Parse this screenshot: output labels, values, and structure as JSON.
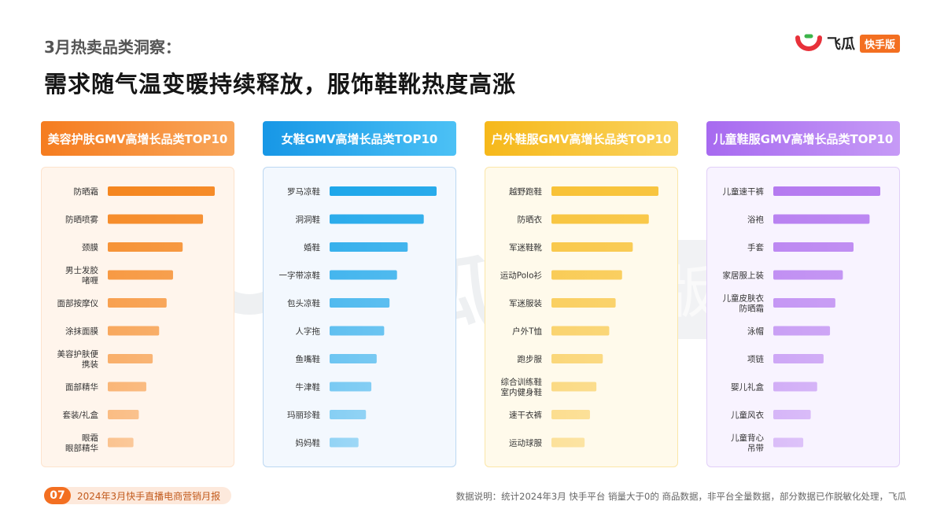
{
  "header": {
    "subtitle": "3月热卖品类洞察：",
    "headline": "需求随气温变暖持续释放，服饰鞋靴热度高涨"
  },
  "brand": {
    "name": "飞瓜",
    "tag": "快手版",
    "accent": "#f36f21"
  },
  "watermark": {
    "name": "飞瓜",
    "tag": "快手版"
  },
  "footer": {
    "page_number": "07",
    "report_name": "2024年3月快手直播电商营销月报",
    "note": "数据说明：统计2024年3月 快手平台 销量大于0的 商品数据，非平台全量数据，部分数据已作脱敏化处理，飞瓜"
  },
  "chart_data": [
    {
      "type": "bar",
      "orientation": "horizontal",
      "title": "美容护肤GMV高增长品类TOP10",
      "color": "#f5861f",
      "categories": [
        "防晒霜",
        "防晒喷雾",
        "颈膜",
        "男士发胶\n啫喱",
        "面部按摩仪",
        "涂抹面膜",
        "美容护肤便\n携装",
        "面部精华",
        "套装/礼盒",
        "眼霜\n眼部精华"
      ],
      "values": [
        100,
        89,
        70,
        61,
        55,
        48,
        42,
        36,
        29,
        24
      ]
    },
    {
      "type": "bar",
      "orientation": "horizontal",
      "title": "女鞋GMV高增长品类TOP10",
      "color": "#1ea7ea",
      "categories": [
        "罗马凉鞋",
        "洞洞鞋",
        "婚鞋",
        "一字带凉鞋",
        "包头凉鞋",
        "人字拖",
        "鱼嘴鞋",
        "牛津鞋",
        "玛丽珍鞋",
        "妈妈鞋"
      ],
      "values": [
        100,
        88,
        73,
        63,
        56,
        51,
        44,
        39,
        34,
        27
      ]
    },
    {
      "type": "bar",
      "orientation": "horizontal",
      "title": "户外鞋服GMV高增长品类TOP10",
      "color": "#f8c237",
      "categories": [
        "越野跑鞋",
        "防晒衣",
        "军迷鞋靴",
        "运动Polo衫",
        "军迷服装",
        "户外T恤",
        "跑步服",
        "综合训练鞋\n室内健身鞋",
        "速干衣裤",
        "运动球服"
      ],
      "values": [
        100,
        91,
        76,
        66,
        60,
        54,
        48,
        42,
        36,
        31
      ]
    },
    {
      "type": "bar",
      "orientation": "horizontal",
      "title": "儿童鞋服GMV高增长品类TOP10",
      "color": "#b57af0",
      "categories": [
        "儿童速干裤",
        "浴袍",
        "手套",
        "家居服上装",
        "儿童皮肤衣\n防晒霜",
        "泳帽",
        "项链",
        "婴儿礼盒",
        "儿童风衣",
        "儿童背心\n吊带"
      ],
      "values": [
        100,
        90,
        75,
        65,
        58,
        53,
        47,
        41,
        35,
        28
      ]
    }
  ],
  "styles": {
    "panels": [
      {
        "header_gradient": [
          "#f57c1f",
          "#f9a65a"
        ],
        "panel_bg": "#fff5ec",
        "panel_border": "#fde3cd",
        "fade_to": "#fcd9bc"
      },
      {
        "header_gradient": [
          "#1797e6",
          "#4cc1f5"
        ],
        "panel_bg": "#f3f8fe",
        "panel_border": "#bcd8f2",
        "fade_to": "#b6e1fa"
      },
      {
        "header_gradient": [
          "#f6b81a",
          "#fad35f"
        ],
        "panel_bg": "#fffaeb",
        "panel_border": "#fbe6a8",
        "fade_to": "#fde6a6"
      },
      {
        "header_gradient": [
          "#a76af0",
          "#c69af6"
        ],
        "panel_bg": "#f8f3ff",
        "panel_border": "#e1cff8",
        "fade_to": "#e0cbfb"
      }
    ]
  }
}
